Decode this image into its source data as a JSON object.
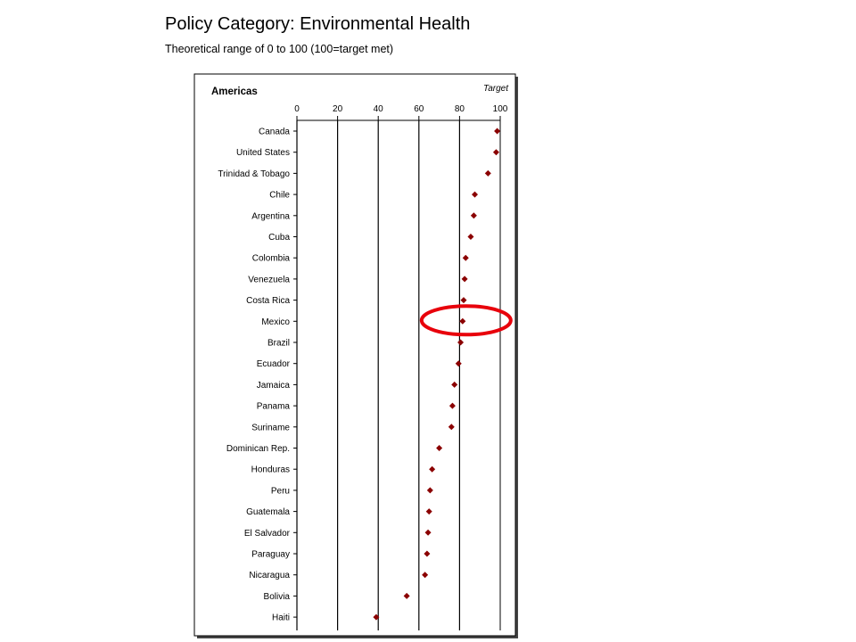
{
  "header": {
    "title": "Policy Category: Environmental Health",
    "subtitle": "Theoretical range of 0 to 100 (100=target met)"
  },
  "chart_data": {
    "type": "scatter",
    "region_label": "Americas",
    "target_label": "Target",
    "xlim": [
      0,
      100
    ],
    "x_ticks": [
      "0",
      "20",
      "40",
      "60",
      "80",
      "100"
    ],
    "grid": true,
    "point_color": "#8b0000",
    "highlight_color": "#e8000b",
    "highlighted_category": "Mexico",
    "categories": [
      "Canada",
      "United States",
      "Trinidad & Tobago",
      "Chile",
      "Argentina",
      "Cuba",
      "Colombia",
      "Venezuela",
      "Costa Rica",
      "Mexico",
      "Brazil",
      "Ecuador",
      "Jamaica",
      "Panama",
      "Suriname",
      "Dominican Rep.",
      "Honduras",
      "Peru",
      "Guatemala",
      "El Salvador",
      "Paraguay",
      "Nicaragua",
      "Bolivia",
      "Haiti"
    ],
    "values": [
      98.5,
      98,
      94,
      87.5,
      87,
      85.5,
      83,
      82.5,
      82,
      81.5,
      80.5,
      79.5,
      77.5,
      76.5,
      76,
      70,
      66.5,
      65.5,
      65,
      64.5,
      64,
      63,
      54,
      39
    ]
  }
}
